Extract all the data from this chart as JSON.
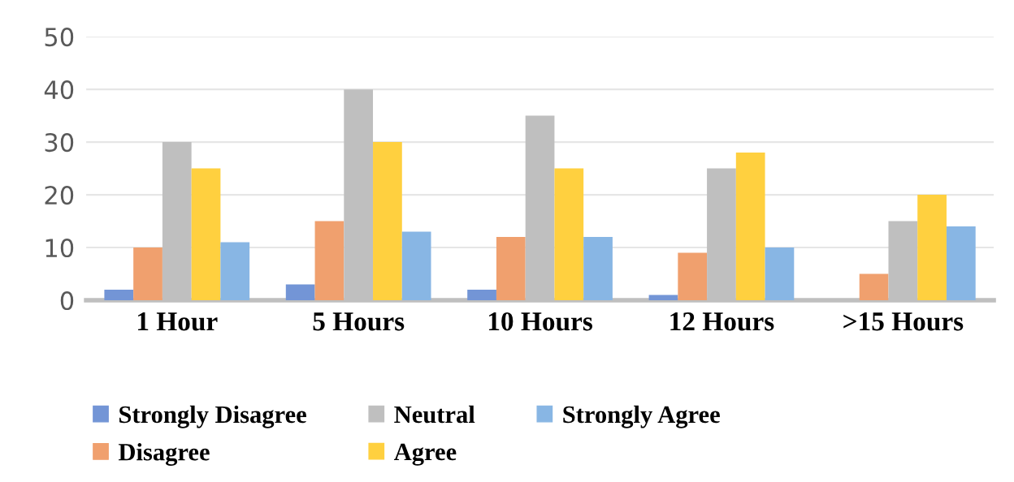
{
  "chart_data": {
    "type": "bar",
    "categories": [
      "1 Hour",
      "5 Hours",
      "10 Hours",
      "12 Hours",
      ">15 Hours"
    ],
    "series": [
      {
        "name": "Strongly Disagree",
        "color": "#7395d6",
        "values": [
          2,
          3,
          2,
          1,
          0
        ]
      },
      {
        "name": "Disagree",
        "color": "#f0a06e",
        "values": [
          10,
          15,
          12,
          9,
          5
        ]
      },
      {
        "name": "Neutral",
        "color": "#bfbfbf",
        "values": [
          30,
          40,
          35,
          25,
          15
        ]
      },
      {
        "name": "Agree",
        "color": "#ffd03f",
        "values": [
          25,
          30,
          25,
          28,
          20
        ]
      },
      {
        "name": "Strongly Agree",
        "color": "#88b6e4",
        "values": [
          11,
          13,
          12,
          10,
          14
        ]
      }
    ],
    "ylim": [
      0,
      50
    ],
    "yticks": [
      0,
      10,
      20,
      30,
      40,
      50
    ],
    "grid": "y",
    "legend": "bottom"
  }
}
